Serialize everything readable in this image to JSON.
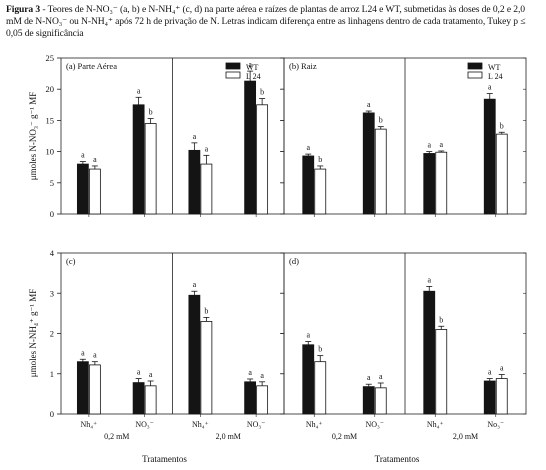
{
  "caption": {
    "label": "Figura 3",
    "text": " - Teores de N-NO₃⁻ (a, b) e N-NH₄⁺ (c, d) na parte aérea e raízes de plantas de arroz L24 e WT, submetidas às doses de 0,2 e 2,0 mM de N-NO₃⁻ ou N-NH₄⁺ após 72 h de privação de N. Letras indicam diferença entre as linhagens dentro de cada tratamento, Tukey p ≤ 0,05 de significância"
  },
  "legend": [
    "WT",
    "L 24"
  ],
  "shared": {
    "ylabel_top": "μmoles N-NO₃⁻ g⁻¹ MF",
    "ylabel_bottom": "μmoles N-NH₄⁺ g⁻¹ MF",
    "xlabel": "Tratamentos",
    "dose_labels": [
      "0,2 mM",
      "2,0 mM"
    ]
  },
  "chart_data": [
    {
      "type": "bar",
      "panel": "(a) Parte Aérea",
      "categories": [
        "Nh₄⁺",
        "NO₃⁻",
        "Nh₄⁺",
        "NO₃⁻"
      ],
      "ylim": [
        0,
        25
      ],
      "yticks": [
        0,
        5,
        10,
        15,
        20,
        25
      ],
      "legend": "top-right",
      "series": [
        {
          "name": "WT",
          "values": [
            8.0,
            17.5,
            10.2,
            21.3
          ],
          "errors": [
            0.4,
            1.2,
            1.2,
            1.6
          ],
          "letters": [
            "a",
            "a",
            "a",
            "a"
          ]
        },
        {
          "name": "L 24",
          "values": [
            7.2,
            14.5,
            8.0,
            17.5
          ],
          "errors": [
            0.5,
            0.8,
            1.4,
            1.0
          ],
          "letters": [
            "a",
            "b",
            "a",
            "b"
          ]
        }
      ]
    },
    {
      "type": "bar",
      "panel": "(b) Raiz",
      "categories": [
        "Nh₄⁺",
        "NO₃⁻",
        "Nh₄⁺",
        "NO₃⁻"
      ],
      "ylim": [
        0,
        25
      ],
      "yticks": [
        0,
        5,
        10,
        15,
        20,
        25
      ],
      "legend": "top-right",
      "series": [
        {
          "name": "WT",
          "values": [
            9.3,
            16.2,
            9.7,
            18.4
          ],
          "errors": [
            0.3,
            0.3,
            0.3,
            0.9
          ],
          "letters": [
            "a",
            "a",
            "a",
            "a"
          ]
        },
        {
          "name": "L 24",
          "values": [
            7.2,
            13.6,
            9.9,
            12.8
          ],
          "errors": [
            0.5,
            0.4,
            0.2,
            0.3
          ],
          "letters": [
            "b",
            "b",
            "a",
            "b"
          ]
        }
      ]
    },
    {
      "type": "bar",
      "panel": "(c)",
      "categories": [
        "Nh₄⁺",
        "NO₃⁻",
        "Nh₄⁺",
        "NO₃⁻"
      ],
      "ylim": [
        0,
        4
      ],
      "yticks": [
        0,
        1,
        2,
        3,
        4
      ],
      "series": [
        {
          "name": "WT",
          "values": [
            1.3,
            0.78,
            2.95,
            0.8
          ],
          "errors": [
            0.06,
            0.1,
            0.1,
            0.07
          ],
          "letters": [
            "a",
            "a",
            "a",
            "a"
          ]
        },
        {
          "name": "L 24",
          "values": [
            1.22,
            0.7,
            2.3,
            0.7
          ],
          "errors": [
            0.08,
            0.12,
            0.1,
            0.1
          ],
          "letters": [
            "a",
            "a",
            "b",
            "a"
          ]
        }
      ]
    },
    {
      "type": "bar",
      "panel": "(d)",
      "categories": [
        "Nh₄⁺",
        "NO₃⁻",
        "Nh₄⁺",
        "No₃⁻"
      ],
      "ylim": [
        0,
        4
      ],
      "yticks": [
        0,
        1,
        2,
        3,
        4
      ],
      "series": [
        {
          "name": "WT",
          "values": [
            1.72,
            0.68,
            3.05,
            0.82
          ],
          "errors": [
            0.08,
            0.06,
            0.12,
            0.06
          ],
          "letters": [
            "a",
            "a",
            "a",
            "a"
          ]
        },
        {
          "name": "L 24",
          "values": [
            1.3,
            0.65,
            2.1,
            0.88
          ],
          "errors": [
            0.15,
            0.12,
            0.08,
            0.1
          ],
          "letters": [
            "b",
            "a",
            "b",
            "a"
          ]
        }
      ]
    }
  ]
}
